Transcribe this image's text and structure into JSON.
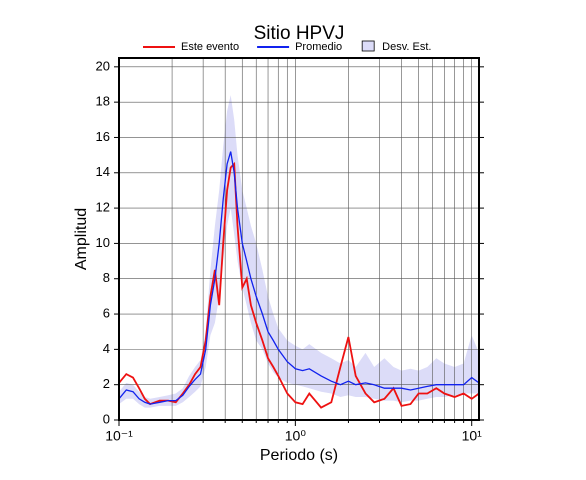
{
  "chart_data": {
    "type": "line",
    "title": "Sitio HPVJ",
    "xlabel": "Periodo (s)",
    "ylabel": "Amplitud",
    "x": [
      0.1,
      0.11,
      0.12,
      0.13,
      0.14,
      0.15,
      0.17,
      0.19,
      0.21,
      0.23,
      0.25,
      0.27,
      0.29,
      0.31,
      0.33,
      0.35,
      0.37,
      0.39,
      0.41,
      0.43,
      0.45,
      0.47,
      0.5,
      0.53,
      0.56,
      0.6,
      0.65,
      0.7,
      0.75,
      0.8,
      0.9,
      1.0,
      1.1,
      1.2,
      1.4,
      1.6,
      1.8,
      2.0,
      2.2,
      2.5,
      2.8,
      3.2,
      3.6,
      4.0,
      4.5,
      5,
      5.6,
      6.3,
      7,
      8,
      9,
      10,
      11
    ],
    "series": [
      {
        "name": "Este evento",
        "color": "#ee1111",
        "values": [
          2.1,
          2.6,
          2.4,
          1.8,
          1.2,
          0.9,
          1.1,
          1.1,
          1.0,
          1.5,
          2.0,
          2.6,
          3.0,
          4.5,
          7.0,
          8.5,
          6.5,
          10,
          13,
          14.3,
          14.5,
          11,
          7.5,
          8,
          6.5,
          5.5,
          4.5,
          3.5,
          3.0,
          2.5,
          1.5,
          1.0,
          0.9,
          1.5,
          0.7,
          1.0,
          3.0,
          4.7,
          2.5,
          1.5,
          1.0,
          1.2,
          1.8,
          0.8,
          0.9,
          1.5,
          1.5,
          1.8,
          1.5,
          1.3,
          1.5,
          1.2,
          1.5
        ]
      },
      {
        "name": "Promedio",
        "color": "#1122ee",
        "values": [
          1.2,
          1.7,
          1.6,
          1.2,
          1.0,
          0.9,
          1.0,
          1.1,
          1.1,
          1.4,
          1.9,
          2.3,
          2.6,
          4,
          6.5,
          8,
          10,
          12.5,
          14.5,
          15.2,
          14,
          12,
          10,
          9,
          8,
          7,
          6,
          5,
          4.5,
          4,
          3.3,
          2.9,
          2.8,
          2.9,
          2.5,
          2.2,
          2.0,
          2.2,
          2.0,
          2.1,
          2.0,
          1.8,
          1.8,
          1.8,
          1.7,
          1.8,
          1.9,
          2.0,
          2.0,
          2.0,
          2.0,
          2.4,
          2.1
        ]
      },
      {
        "name": "Desv. Est.",
        "color": "#dcdcf8",
        "band": true,
        "upper": [
          1.6,
          2.1,
          2.0,
          1.6,
          1.3,
          1.2,
          1.3,
          1.4,
          1.5,
          1.8,
          2.5,
          3.0,
          3.4,
          5.0,
          8.5,
          11,
          13,
          15.5,
          17.5,
          18.4,
          17,
          15,
          13,
          12,
          11,
          10,
          8.5,
          7,
          6,
          5.2,
          4.5,
          4.2,
          4.0,
          4.3,
          3.8,
          3.5,
          3.2,
          3.4,
          3.0,
          3.8,
          3.0,
          3.5,
          3.0,
          2.8,
          2.9,
          2.8,
          3.0,
          3.5,
          3.2,
          3.0,
          3.2,
          4.8,
          3.8
        ],
        "lower": [
          0.9,
          1.2,
          1.2,
          0.9,
          0.7,
          0.7,
          0.8,
          0.8,
          0.8,
          1.0,
          1.3,
          1.6,
          1.9,
          3,
          4.8,
          5.5,
          7,
          9,
          11,
          12,
          10.5,
          9,
          7.5,
          6.5,
          5.5,
          4.5,
          4,
          3.2,
          2.7,
          2.4,
          2.1,
          2.0,
          1.9,
          1.8,
          1.6,
          1.5,
          1.3,
          1.4,
          1.3,
          1.3,
          1.2,
          1.1,
          1.1,
          1.0,
          1.1,
          1.1,
          1.2,
          1.3,
          1.3,
          1.4,
          1.5,
          1.5,
          1.5
        ]
      }
    ],
    "xscale": "log",
    "xlim": [
      0.1,
      11
    ],
    "ylim": [
      0,
      20.5
    ],
    "xticks": [
      {
        "value": 0.1,
        "label": "10⁻¹"
      },
      {
        "value": 1,
        "label": "10⁰"
      },
      {
        "value": 10,
        "label": "10¹"
      }
    ],
    "xminor_ticks": [
      0.2,
      0.3,
      0.4,
      0.5,
      0.6,
      0.7,
      0.8,
      0.9,
      2,
      3,
      4,
      5,
      6,
      7,
      8,
      9
    ],
    "yticks": [
      0,
      2,
      4,
      6,
      8,
      10,
      12,
      14,
      16,
      18,
      20
    ],
    "grid": true,
    "legend": "top"
  }
}
